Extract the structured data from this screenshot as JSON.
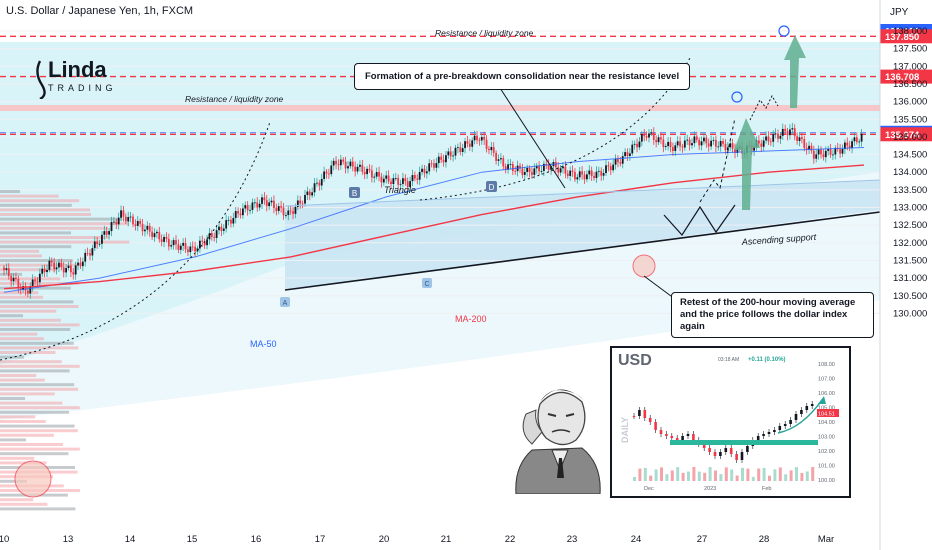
{
  "header": {
    "symbol": "U.S. Dollar / Japanese Yen, 1h, FXCM"
  },
  "brand": {
    "name": "Linda",
    "sub": "TRADING"
  },
  "chart_data": {
    "type": "line",
    "title": "U.S. Dollar / Japanese Yen, 1h, FXCM",
    "currency": "JPY",
    "ylim": [
      129.8,
      138.4
    ],
    "y_ticks": [
      130.0,
      130.5,
      131.0,
      131.5,
      132.0,
      132.5,
      133.0,
      133.5,
      134.0,
      134.5,
      135.0,
      135.5,
      136.0,
      136.5,
      137.0,
      137.5,
      138.0
    ],
    "x_ticks": [
      "10",
      "13",
      "14",
      "15",
      "16",
      "17",
      "20",
      "21",
      "22",
      "23",
      "24",
      "27",
      "28",
      "Mar"
    ],
    "price_tags": [
      {
        "label": "138.000",
        "value": 138.0,
        "color": "#2962ff"
      },
      {
        "label": "137.850",
        "value": 137.85,
        "color": "#f23645"
      },
      {
        "label": "136.708",
        "value": 136.708,
        "color": "#f23645"
      },
      {
        "label": "135.117",
        "value": 135.117,
        "color": "#2962ff"
      },
      {
        "label": "135.074",
        "value": 135.074,
        "color": "#f23645"
      }
    ],
    "levels": [
      {
        "name": "Resistance / liquidity zone",
        "value": 137.85
      },
      {
        "name": "Resistance / liquidity zone",
        "value": 136.708
      }
    ],
    "series": [
      {
        "name": "USDJPY",
        "color": "#f23645",
        "points": [
          [
            0,
            131.3
          ],
          [
            1,
            130.6
          ],
          [
            2,
            131.4
          ],
          [
            3,
            131.2
          ],
          [
            4,
            132.0
          ],
          [
            5,
            132.8
          ],
          [
            6,
            132.4
          ],
          [
            7,
            132.0
          ],
          [
            8,
            131.8
          ],
          [
            9,
            132.3
          ],
          [
            10,
            132.9
          ],
          [
            11,
            133.2
          ],
          [
            12,
            132.8
          ],
          [
            13,
            133.5
          ],
          [
            14,
            134.3
          ],
          [
            15,
            134.1
          ],
          [
            16,
            133.8
          ],
          [
            17,
            133.7
          ],
          [
            18,
            134.2
          ],
          [
            19,
            134.6
          ],
          [
            20,
            135.0
          ],
          [
            21,
            134.2
          ],
          [
            22,
            134.0
          ],
          [
            23,
            134.2
          ],
          [
            24,
            133.9
          ],
          [
            25,
            133.95
          ],
          [
            26,
            134.4
          ],
          [
            27,
            135.1
          ],
          [
            28,
            134.7
          ],
          [
            29,
            134.9
          ],
          [
            30,
            134.8
          ],
          [
            31,
            134.6
          ],
          [
            32,
            134.9
          ],
          [
            33,
            135.2
          ],
          [
            34,
            134.5
          ],
          [
            35,
            134.6
          ],
          [
            36,
            135.0
          ]
        ]
      },
      {
        "name": "MA-50",
        "color": "#2962ff",
        "points": [
          [
            0,
            130.6
          ],
          [
            4,
            131.0
          ],
          [
            8,
            131.6
          ],
          [
            12,
            132.4
          ],
          [
            16,
            133.3
          ],
          [
            20,
            134.0
          ],
          [
            24,
            134.3
          ],
          [
            28,
            134.5
          ],
          [
            32,
            134.6
          ],
          [
            36,
            134.7
          ]
        ]
      },
      {
        "name": "MA-200",
        "color": "#f23645",
        "points": [
          [
            0,
            130.7
          ],
          [
            4,
            130.9
          ],
          [
            8,
            131.2
          ],
          [
            12,
            131.6
          ],
          [
            16,
            132.2
          ],
          [
            20,
            132.8
          ],
          [
            24,
            133.3
          ],
          [
            28,
            133.7
          ],
          [
            32,
            134.0
          ],
          [
            36,
            134.2
          ]
        ]
      }
    ],
    "annotations": [
      "Triangle",
      "Ascending support",
      "MA-50",
      "MA-200",
      "B",
      "D",
      "A",
      "C"
    ]
  },
  "callouts": {
    "top": "Formation of a pre-breakdown consolidation near the resistance level",
    "bottom": "Retest of the 200-hour moving average and the price follows the dollar index again"
  },
  "inset": {
    "symbol": "USD",
    "time": "03:18 AM",
    "change": "+0.11 (0.10%)",
    "side_label": "DAILY",
    "last_price": "104.51",
    "y_ticks": [
      "108.00",
      "107.00",
      "106.00",
      "105.00",
      "104.00",
      "103.00",
      "102.00",
      "101.00",
      "100.00"
    ],
    "x_ticks": [
      "Dec",
      "2023",
      "Feb"
    ]
  },
  "colors": {
    "up": "#26a69a",
    "down": "#f23645",
    "resistance": "#f23645",
    "zone": "#d7f2f7",
    "triangle": "#cfe6f5"
  }
}
